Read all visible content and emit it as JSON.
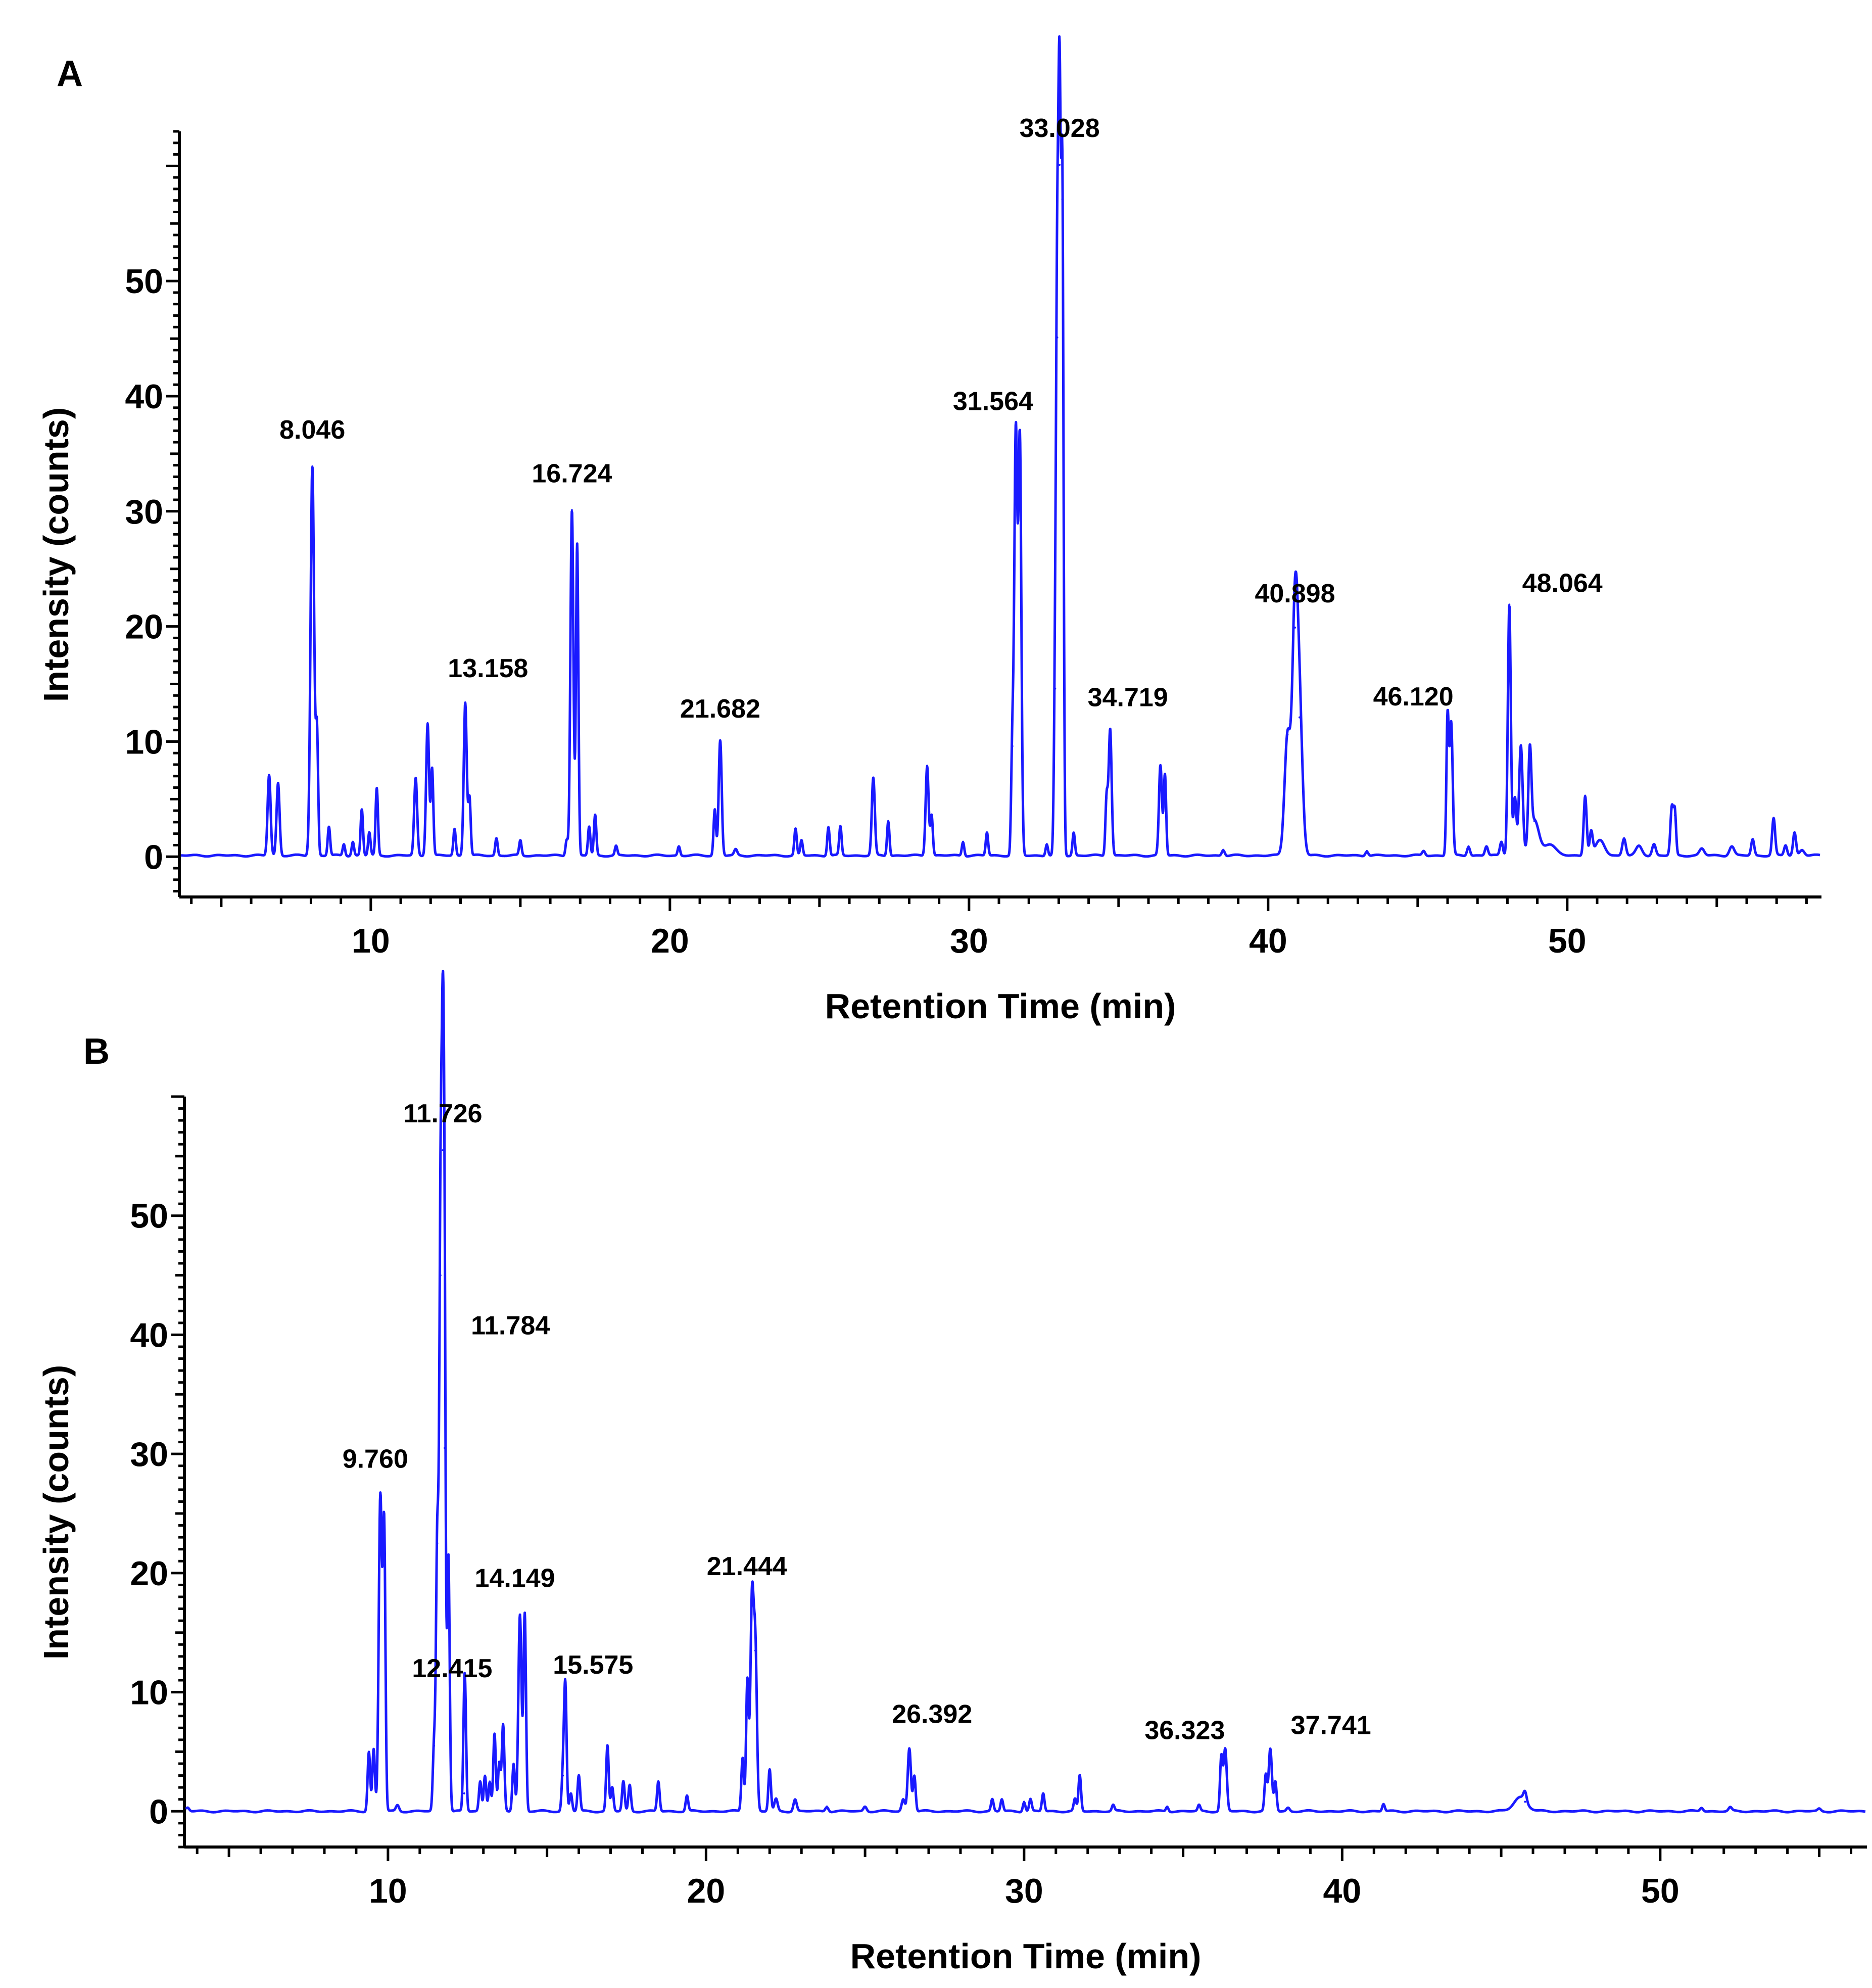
{
  "colors": {
    "trace": "#1a1aff",
    "axis": "#000000",
    "background": "#ffffff"
  },
  "chart_data": [
    {
      "type": "line",
      "panel": "A",
      "xlabel": "Retention Time (min)",
      "ylabel": "Intensity (counts)",
      "xlim": [
        3.6,
        58.5
      ],
      "ylim": [
        -3.5,
        63
      ],
      "xticks": [
        10,
        20,
        30,
        40,
        50
      ],
      "yticks": [
        0,
        10,
        20,
        30,
        40,
        50
      ],
      "baseline": 0.1,
      "peaks": [
        {
          "x": 6.6,
          "y": 7.0,
          "w": 0.05
        },
        {
          "x": 6.9,
          "y": 6.3,
          "w": 0.05
        },
        {
          "x": 8.046,
          "y": 33.8,
          "w": 0.06,
          "label": "8.046"
        },
        {
          "x": 8.2,
          "y": 10.5,
          "w": 0.04
        },
        {
          "x": 8.6,
          "y": 2.5,
          "w": 0.04
        },
        {
          "x": 9.1,
          "y": 1.0,
          "w": 0.04
        },
        {
          "x": 9.4,
          "y": 1.2,
          "w": 0.04
        },
        {
          "x": 9.7,
          "y": 4.0,
          "w": 0.04
        },
        {
          "x": 9.95,
          "y": 2.0,
          "w": 0.04
        },
        {
          "x": 10.2,
          "y": 5.8,
          "w": 0.04
        },
        {
          "x": 11.5,
          "y": 6.7,
          "w": 0.05
        },
        {
          "x": 11.9,
          "y": 11.5,
          "w": 0.05
        },
        {
          "x": 12.05,
          "y": 7.5,
          "w": 0.04
        },
        {
          "x": 12.8,
          "y": 2.3,
          "w": 0.04
        },
        {
          "x": 13.158,
          "y": 13.3,
          "w": 0.05,
          "label": "13.158"
        },
        {
          "x": 13.3,
          "y": 5.0,
          "w": 0.04
        },
        {
          "x": 14.2,
          "y": 1.5,
          "w": 0.04
        },
        {
          "x": 15.0,
          "y": 1.3,
          "w": 0.04
        },
        {
          "x": 16.55,
          "y": 1.4,
          "w": 0.04
        },
        {
          "x": 16.724,
          "y": 30.0,
          "w": 0.05,
          "label": "16.724"
        },
        {
          "x": 16.9,
          "y": 27.0,
          "w": 0.04
        },
        {
          "x": 17.3,
          "y": 2.5,
          "w": 0.04
        },
        {
          "x": 17.5,
          "y": 3.5,
          "w": 0.04
        },
        {
          "x": 18.2,
          "y": 0.8,
          "w": 0.04
        },
        {
          "x": 20.3,
          "y": 0.8,
          "w": 0.04
        },
        {
          "x": 21.5,
          "y": 4.0,
          "w": 0.04
        },
        {
          "x": 21.682,
          "y": 10.0,
          "w": 0.05,
          "label": "21.682"
        },
        {
          "x": 22.2,
          "y": 0.5,
          "w": 0.05
        },
        {
          "x": 24.2,
          "y": 2.3,
          "w": 0.04
        },
        {
          "x": 24.4,
          "y": 1.3,
          "w": 0.04
        },
        {
          "x": 25.3,
          "y": 2.5,
          "w": 0.04
        },
        {
          "x": 25.7,
          "y": 2.5,
          "w": 0.04
        },
        {
          "x": 26.8,
          "y": 6.7,
          "w": 0.05
        },
        {
          "x": 27.3,
          "y": 3.0,
          "w": 0.04
        },
        {
          "x": 28.6,
          "y": 7.8,
          "w": 0.05
        },
        {
          "x": 28.75,
          "y": 3.5,
          "w": 0.04
        },
        {
          "x": 29.8,
          "y": 1.2,
          "w": 0.04
        },
        {
          "x": 30.6,
          "y": 2.0,
          "w": 0.04
        },
        {
          "x": 31.45,
          "y": 9.5,
          "w": 0.04
        },
        {
          "x": 31.564,
          "y": 36.5,
          "w": 0.05,
          "label": "31.564"
        },
        {
          "x": 31.7,
          "y": 36.0,
          "w": 0.05
        },
        {
          "x": 32.6,
          "y": 1.0,
          "w": 0.04
        },
        {
          "x": 32.88,
          "y": 14.5,
          "w": 0.04
        },
        {
          "x": 32.95,
          "y": 45.0,
          "w": 0.04
        },
        {
          "x": 33.028,
          "y": 60.0,
          "w": 0.04,
          "label": "33.028"
        },
        {
          "x": 33.12,
          "y": 57.0,
          "w": 0.04
        },
        {
          "x": 33.5,
          "y": 2.0,
          "w": 0.04
        },
        {
          "x": 34.6,
          "y": 5.0,
          "w": 0.04
        },
        {
          "x": 34.719,
          "y": 11.0,
          "w": 0.05,
          "label": "34.719"
        },
        {
          "x": 36.4,
          "y": 7.8,
          "w": 0.05
        },
        {
          "x": 36.55,
          "y": 7.0,
          "w": 0.04
        },
        {
          "x": 38.5,
          "y": 0.5,
          "w": 0.05
        },
        {
          "x": 40.65,
          "y": 10.5,
          "w": 0.1
        },
        {
          "x": 40.898,
          "y": 19.8,
          "w": 0.09,
          "label": "40.898"
        },
        {
          "x": 41.05,
          "y": 12.0,
          "w": 0.1
        },
        {
          "x": 43.3,
          "y": 0.4,
          "w": 0.05
        },
        {
          "x": 45.2,
          "y": 0.4,
          "w": 0.05
        },
        {
          "x": 46.0,
          "y": 12.0,
          "w": 0.04
        },
        {
          "x": 46.12,
          "y": 11.5,
          "w": 0.05,
          "label": "46.120"
        },
        {
          "x": 46.7,
          "y": 0.8,
          "w": 0.05
        },
        {
          "x": 47.3,
          "y": 0.8,
          "w": 0.05
        },
        {
          "x": 47.8,
          "y": 1.2,
          "w": 0.05
        },
        {
          "x": 48.064,
          "y": 21.8,
          "w": 0.05,
          "label": "48.064"
        },
        {
          "x": 48.25,
          "y": 5.0,
          "w": 0.05
        },
        {
          "x": 48.45,
          "y": 9.5,
          "w": 0.06
        },
        {
          "x": 48.75,
          "y": 7.8,
          "w": 0.05
        },
        {
          "x": 48.9,
          "y": 3.0,
          "w": 0.15
        },
        {
          "x": 49.4,
          "y": 1.0,
          "w": 0.2
        },
        {
          "x": 50.6,
          "y": 5.2,
          "w": 0.05
        },
        {
          "x": 50.8,
          "y": 2.0,
          "w": 0.05
        },
        {
          "x": 51.1,
          "y": 1.3,
          "w": 0.15
        },
        {
          "x": 51.9,
          "y": 1.5,
          "w": 0.06
        },
        {
          "x": 52.4,
          "y": 0.8,
          "w": 0.1
        },
        {
          "x": 52.9,
          "y": 1.0,
          "w": 0.06
        },
        {
          "x": 53.5,
          "y": 4.2,
          "w": 0.05
        },
        {
          "x": 53.6,
          "y": 3.5,
          "w": 0.04
        },
        {
          "x": 54.5,
          "y": 0.6,
          "w": 0.08
        },
        {
          "x": 55.5,
          "y": 0.8,
          "w": 0.08
        },
        {
          "x": 56.2,
          "y": 1.4,
          "w": 0.05
        },
        {
          "x": 56.9,
          "y": 3.2,
          "w": 0.05
        },
        {
          "x": 57.3,
          "y": 0.9,
          "w": 0.05
        },
        {
          "x": 57.6,
          "y": 2.0,
          "w": 0.05
        },
        {
          "x": 57.85,
          "y": 0.5,
          "w": 0.08
        }
      ]
    },
    {
      "type": "line",
      "panel": "B",
      "xlabel": "Retention Time (min)",
      "ylabel": "Intensity (counts)",
      "xlim": [
        3.6,
        56.5
      ],
      "ylim": [
        -3.0,
        60
      ],
      "xticks": [
        10,
        20,
        30,
        40,
        50
      ],
      "yticks": [
        0,
        10,
        20,
        30,
        40,
        50
      ],
      "baseline": 0.0,
      "peaks": [
        {
          "x": 3.7,
          "y": 0.3,
          "w": 0.05
        },
        {
          "x": 9.4,
          "y": 5.0,
          "w": 0.04
        },
        {
          "x": 9.55,
          "y": 5.2,
          "w": 0.04
        },
        {
          "x": 9.76,
          "y": 26.5,
          "w": 0.05,
          "label": "9.760"
        },
        {
          "x": 9.88,
          "y": 23.5,
          "w": 0.04
        },
        {
          "x": 10.3,
          "y": 0.5,
          "w": 0.05
        },
        {
          "x": 11.45,
          "y": 5.5,
          "w": 0.04
        },
        {
          "x": 11.55,
          "y": 22.5,
          "w": 0.04
        },
        {
          "x": 11.65,
          "y": 45.0,
          "w": 0.04
        },
        {
          "x": 11.726,
          "y": 55.5,
          "w": 0.04,
          "label": "11.726"
        },
        {
          "x": 11.784,
          "y": 30.5,
          "w": 0.035,
          "label": "11.784"
        },
        {
          "x": 11.9,
          "y": 21.5,
          "w": 0.04
        },
        {
          "x": 12.4,
          "y": 1.5,
          "w": 0.04
        },
        {
          "x": 12.415,
          "y": 10.2,
          "w": 0.04,
          "label": "12.415"
        },
        {
          "x": 12.9,
          "y": 2.5,
          "w": 0.04
        },
        {
          "x": 13.05,
          "y": 3.0,
          "w": 0.04
        },
        {
          "x": 13.2,
          "y": 2.5,
          "w": 0.04
        },
        {
          "x": 13.35,
          "y": 6.5,
          "w": 0.04
        },
        {
          "x": 13.5,
          "y": 4.0,
          "w": 0.04
        },
        {
          "x": 13.62,
          "y": 7.2,
          "w": 0.04
        },
        {
          "x": 13.95,
          "y": 4.0,
          "w": 0.04
        },
        {
          "x": 14.149,
          "y": 16.5,
          "w": 0.05,
          "label": "14.149"
        },
        {
          "x": 14.3,
          "y": 16.5,
          "w": 0.04
        },
        {
          "x": 15.5,
          "y": 3.0,
          "w": 0.04
        },
        {
          "x": 15.575,
          "y": 10.5,
          "w": 0.04,
          "label": "15.575"
        },
        {
          "x": 15.75,
          "y": 1.5,
          "w": 0.04
        },
        {
          "x": 16.0,
          "y": 3.0,
          "w": 0.04
        },
        {
          "x": 16.9,
          "y": 5.5,
          "w": 0.04
        },
        {
          "x": 17.05,
          "y": 2.0,
          "w": 0.04
        },
        {
          "x": 17.4,
          "y": 2.5,
          "w": 0.04
        },
        {
          "x": 17.6,
          "y": 2.2,
          "w": 0.04
        },
        {
          "x": 18.5,
          "y": 2.5,
          "w": 0.04
        },
        {
          "x": 19.4,
          "y": 1.3,
          "w": 0.04
        },
        {
          "x": 21.15,
          "y": 4.5,
          "w": 0.04
        },
        {
          "x": 21.3,
          "y": 11.0,
          "w": 0.04
        },
        {
          "x": 21.444,
          "y": 17.5,
          "w": 0.05,
          "label": "21.444"
        },
        {
          "x": 21.55,
          "y": 13.5,
          "w": 0.05
        },
        {
          "x": 22.0,
          "y": 3.5,
          "w": 0.04
        },
        {
          "x": 22.2,
          "y": 1.0,
          "w": 0.05
        },
        {
          "x": 22.8,
          "y": 1.0,
          "w": 0.05
        },
        {
          "x": 23.8,
          "y": 0.4,
          "w": 0.05
        },
        {
          "x": 25.0,
          "y": 0.4,
          "w": 0.05
        },
        {
          "x": 26.2,
          "y": 1.0,
          "w": 0.05
        },
        {
          "x": 26.392,
          "y": 5.3,
          "w": 0.05,
          "label": "26.392"
        },
        {
          "x": 26.55,
          "y": 3.0,
          "w": 0.04
        },
        {
          "x": 29.0,
          "y": 1.0,
          "w": 0.04
        },
        {
          "x": 29.3,
          "y": 1.0,
          "w": 0.04
        },
        {
          "x": 30.0,
          "y": 0.8,
          "w": 0.04
        },
        {
          "x": 30.2,
          "y": 1.0,
          "w": 0.04
        },
        {
          "x": 30.6,
          "y": 1.5,
          "w": 0.04
        },
        {
          "x": 31.6,
          "y": 1.0,
          "w": 0.04
        },
        {
          "x": 31.75,
          "y": 3.0,
          "w": 0.04
        },
        {
          "x": 32.8,
          "y": 0.5,
          "w": 0.04
        },
        {
          "x": 34.5,
          "y": 0.4,
          "w": 0.04
        },
        {
          "x": 35.5,
          "y": 0.5,
          "w": 0.04
        },
        {
          "x": 36.2,
          "y": 4.5,
          "w": 0.04
        },
        {
          "x": 36.323,
          "y": 5.2,
          "w": 0.05,
          "label": "36.323"
        },
        {
          "x": 37.6,
          "y": 3.0,
          "w": 0.04
        },
        {
          "x": 37.741,
          "y": 5.2,
          "w": 0.05,
          "label": "37.741"
        },
        {
          "x": 37.9,
          "y": 2.5,
          "w": 0.04
        },
        {
          "x": 38.3,
          "y": 0.3,
          "w": 0.05
        },
        {
          "x": 41.3,
          "y": 0.6,
          "w": 0.04
        },
        {
          "x": 45.6,
          "y": 1.2,
          "w": 0.2
        },
        {
          "x": 45.75,
          "y": 0.8,
          "w": 0.05
        },
        {
          "x": 51.3,
          "y": 0.3,
          "w": 0.05
        },
        {
          "x": 52.2,
          "y": 0.3,
          "w": 0.05
        },
        {
          "x": 55.0,
          "y": 0.2,
          "w": 0.05
        }
      ]
    }
  ]
}
